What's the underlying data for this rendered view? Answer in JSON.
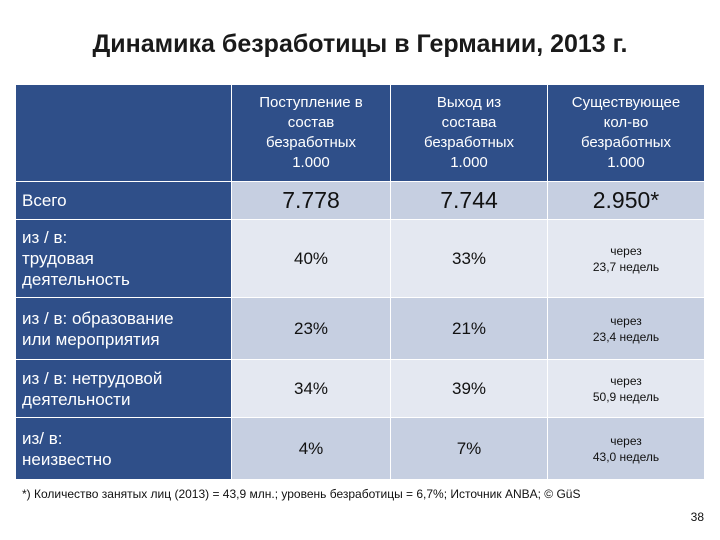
{
  "title": "Динамика безработицы в Германии, 2013 г.",
  "headers": [
    {
      "line1": "Поступление в",
      "line2": "состав",
      "line3": "безработных",
      "line4": "1.000"
    },
    {
      "line1": "Выход из",
      "line2": "состава",
      "line3": "безработных",
      "line4": "1.000"
    },
    {
      "line1": "Существующее",
      "line2": "кол-во",
      "line3": "безработных",
      "line4": "1.000"
    }
  ],
  "rows": [
    {
      "label": "Всего",
      "c1": "7.778",
      "c2": "7.744",
      "c3": "2.950*"
    },
    {
      "label1": "из / в:",
      "label2": "трудовая",
      "label3": "деятельность",
      "c1": "40%",
      "c2": "33%",
      "c3a": "через",
      "c3b": "23,7 недель"
    },
    {
      "label1": "из / в: образование",
      "label2": "или мероприятия",
      "c1": "23%",
      "c2": "21%",
      "c3a": "через",
      "c3b": "23,4 недель"
    },
    {
      "label1": "из / в: нетрудовой",
      "label2": "деятельности",
      "c1": "34%",
      "c2": "39%",
      "c3a": "через",
      "c3b": "50,9 недель"
    },
    {
      "label1": "из/ в:",
      "label2": "неизвестно",
      "c1": "4%",
      "c2": "7%",
      "c3a": "через",
      "c3b": "43,0 недель"
    }
  ],
  "footnote": "*) Количество занятых лиц (2013) = 43,9 млн.; уровень безработицы = 6,7%; Источник ANBA; © GüS",
  "page_number": "38"
}
